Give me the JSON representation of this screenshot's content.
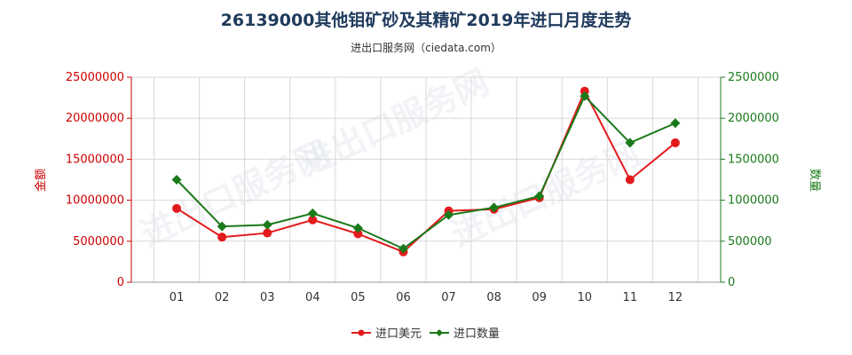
{
  "chart_data": {
    "type": "line",
    "title": "26139000其他钼矿砂及其精矿2019年进口月度走势",
    "subtitle": "进出口服务网（ciedata.com）",
    "watermark": "进出口服务网",
    "categories": [
      "01",
      "02",
      "03",
      "04",
      "05",
      "06",
      "07",
      "08",
      "09",
      "10",
      "11",
      "12"
    ],
    "y_left": {
      "label": "金额",
      "min": 0,
      "max": 25000000,
      "ticks": [
        "0",
        "5000000",
        "10000000",
        "15000000",
        "20000000",
        "25000000"
      ]
    },
    "y_right": {
      "label": "数量",
      "min": 0,
      "max": 2500000,
      "ticks": [
        "0",
        "500000",
        "1000000",
        "1500000",
        "2000000",
        "2500000"
      ]
    },
    "series": [
      {
        "name": "进口美元",
        "axis": "left",
        "color": "#e31a1c",
        "marker": "circle",
        "values": [
          9000000,
          5500000,
          6000000,
          7600000,
          5900000,
          3700000,
          8700000,
          8900000,
          10300000,
          23300000,
          12500000,
          17000000
        ]
      },
      {
        "name": "进口数量",
        "axis": "right",
        "color": "#1a7a1a",
        "marker": "diamond",
        "values": [
          1250000,
          680000,
          700000,
          840000,
          660000,
          410000,
          820000,
          910000,
          1050000,
          2270000,
          1700000,
          1940000
        ]
      }
    ],
    "grid": true,
    "legend_position": "bottom"
  }
}
